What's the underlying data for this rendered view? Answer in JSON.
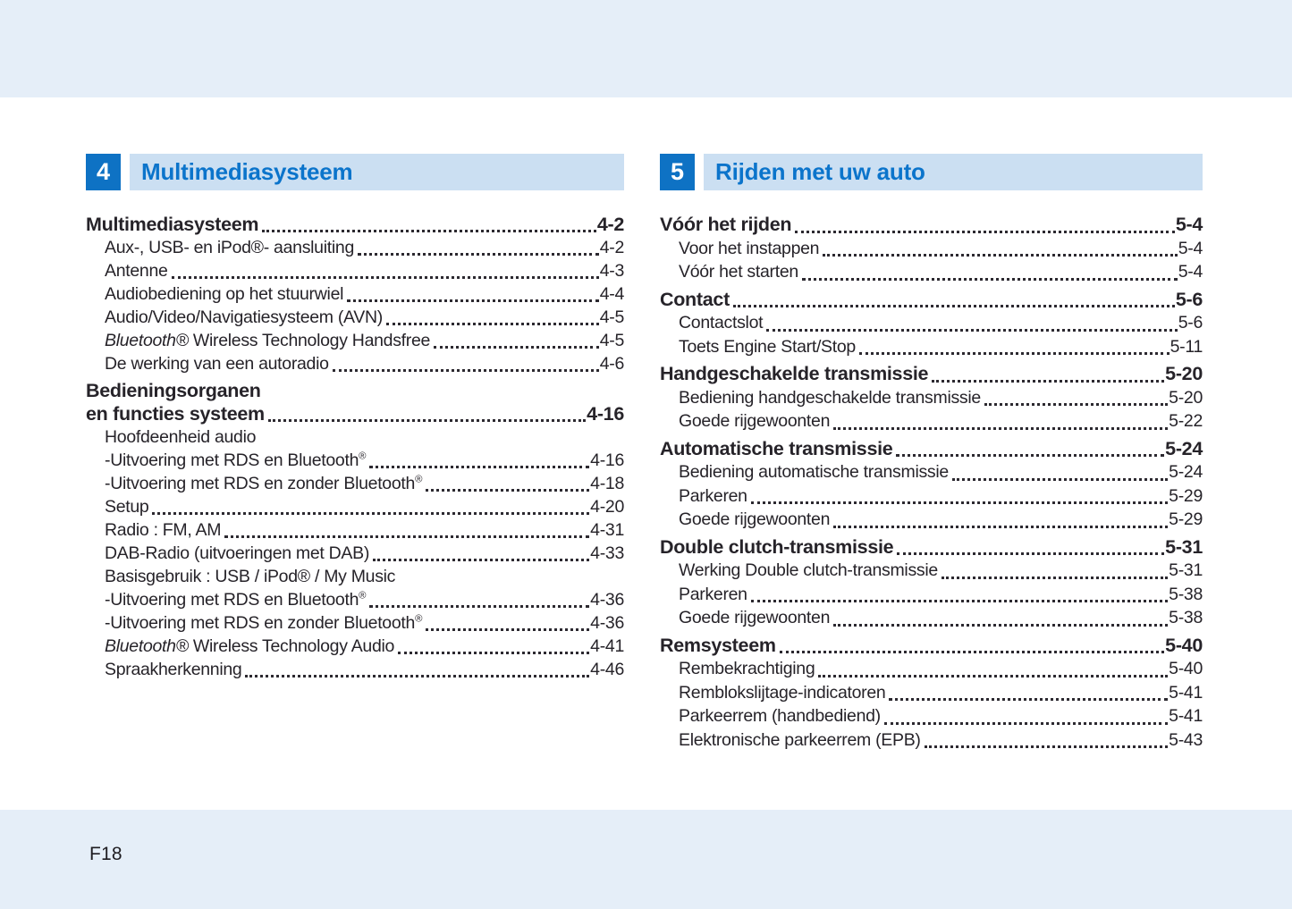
{
  "colors": {
    "accent_blue": "#0e72c4",
    "bar_bg": "#cbdff2",
    "band_bg": "#e5eef8",
    "title_blue": "#0b74cb",
    "text_color": "#262329"
  },
  "footer": {
    "label": "F18"
  },
  "columns": [
    {
      "chapter_number": "4",
      "chapter_title": "Multimediasysteem",
      "entries": [
        {
          "label": "Multimediasysteem",
          "page": "4-2",
          "level": 0,
          "bold": true,
          "section": true
        },
        {
          "label": "Aux-, USB- en iPod®- aansluiting",
          "page": "4-2",
          "level": 1
        },
        {
          "label": "Antenne",
          "page": "4-3",
          "level": 1
        },
        {
          "label": "Audiobediening op het stuurwiel",
          "page": "4-4",
          "level": 1
        },
        {
          "label": "Audio/Video/Navigatiesysteem (AVN)",
          "page": "4-5",
          "level": 1
        },
        {
          "segments": [
            {
              "text": "Bluetooth®",
              "italic": true
            },
            {
              "text": " Wireless Technology Handsfree"
            }
          ],
          "page": "4-5",
          "level": 1
        },
        {
          "label": "De werking van een autoradio",
          "page": "4-6",
          "level": 1
        },
        {
          "label": "Bedieningsorganen",
          "level": 0,
          "bold": true,
          "section": true
        },
        {
          "label": "en functies systeem",
          "page": "4-16",
          "level": 0,
          "bold": true
        },
        {
          "label": "Hoofdeenheid audio",
          "level": 1
        },
        {
          "segments": [
            {
              "text": "-Uitvoering met RDS en Bluetooth"
            },
            {
              "text": "®",
              "sup": true
            }
          ],
          "page": "4-16",
          "level": 1
        },
        {
          "segments": [
            {
              "text": "-Uitvoering met RDS en zonder Bluetooth"
            },
            {
              "text": "®",
              "sup": true
            }
          ],
          "page": "4-18",
          "level": 1
        },
        {
          "label": "Setup",
          "page": "4-20",
          "level": 1
        },
        {
          "label": "Radio : FM, AM",
          "page": "4-31",
          "level": 1
        },
        {
          "label": "DAB-Radio (uitvoeringen met DAB)",
          "page": "4-33",
          "level": 1
        },
        {
          "label": "Basisgebruik : USB / iPod® / My Music",
          "level": 1
        },
        {
          "segments": [
            {
              "text": "-Uitvoering met RDS en Bluetooth"
            },
            {
              "text": "®",
              "sup": true
            }
          ],
          "page": "4-36",
          "level": 1
        },
        {
          "segments": [
            {
              "text": "-Uitvoering met RDS en zonder Bluetooth"
            },
            {
              "text": "®",
              "sup": true
            }
          ],
          "page": "4-36",
          "level": 1
        },
        {
          "segments": [
            {
              "text": "Bluetooth®",
              "italic": true
            },
            {
              "text": " Wireless Technology Audio"
            }
          ],
          "page": "4-41",
          "level": 1
        },
        {
          "label": "Spraakherkenning",
          "page": "4-46",
          "level": 1
        }
      ]
    },
    {
      "chapter_number": "5",
      "chapter_title": "Rijden met uw auto",
      "entries": [
        {
          "label": "Vóór het rijden",
          "page": "5-4",
          "level": 0,
          "bold": true,
          "section": true
        },
        {
          "label": "Voor het instappen",
          "page": "5-4",
          "level": 1
        },
        {
          "label": "Vóór het starten",
          "page": "5-4",
          "level": 1
        },
        {
          "label": "Contact",
          "page": "5-6",
          "level": 0,
          "bold": true,
          "section": true
        },
        {
          "label": "Contactslot",
          "page": "5-6",
          "level": 1
        },
        {
          "label": "Toets Engine Start/Stop",
          "page": "5-11",
          "level": 1
        },
        {
          "label": "Handgeschakelde transmissie",
          "page": "5-20",
          "level": 0,
          "bold": true,
          "section": true
        },
        {
          "label": "Bediening handgeschakelde transmissie",
          "page": "5-20",
          "level": 1
        },
        {
          "label": "Goede rijgewoonten",
          "page": "5-22",
          "level": 1
        },
        {
          "label": "Automatische transmissie",
          "page": "5-24",
          "level": 0,
          "bold": true,
          "section": true
        },
        {
          "label": "Bediening automatische transmissie",
          "page": "5-24",
          "level": 1
        },
        {
          "label": "Parkeren",
          "page": "5-29",
          "level": 1
        },
        {
          "label": "Goede rijgewoonten",
          "page": "5-29",
          "level": 1
        },
        {
          "label": "Double clutch-transmissie",
          "page": "5-31",
          "level": 0,
          "bold": true,
          "section": true
        },
        {
          "label": "Werking Double clutch-transmissie",
          "page": "5-31",
          "level": 1
        },
        {
          "label": "Parkeren",
          "page": "5-38",
          "level": 1
        },
        {
          "label": "Goede rijgewoonten",
          "page": "5-38",
          "level": 1
        },
        {
          "label": "Remsysteem",
          "page": "5-40",
          "level": 0,
          "bold": true,
          "section": true
        },
        {
          "label": "Rembekrachtiging",
          "page": "5-40",
          "level": 1
        },
        {
          "label": "Remblokslijtage-indicatoren",
          "page": "5-41",
          "level": 1
        },
        {
          "label": "Parkeerrem (handbediend)",
          "page": "5-41",
          "level": 1
        },
        {
          "label": "Elektronische parkeerrem (EPB)",
          "page": "5-43",
          "level": 1
        }
      ]
    }
  ]
}
